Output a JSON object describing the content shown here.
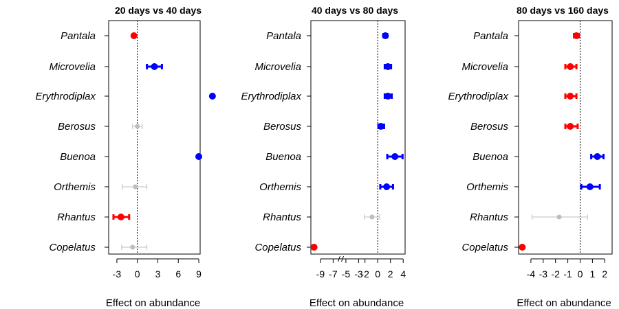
{
  "chart_data": [
    {
      "type": "scatter",
      "title": "20 days vs 40 days",
      "xlabel": "Effect on abundance",
      "xlim": [
        -4.2,
        9.2
      ],
      "xticks": [
        -3,
        0,
        3,
        6,
        9
      ],
      "xtick_labels": [
        "-3",
        "0",
        "3",
        "6",
        "9"
      ],
      "reference_line": 0,
      "axis_break": false,
      "grid": false,
      "categories": [
        "Pantala",
        "Microvelia",
        "Erythrodiplax",
        "Berosus",
        "Buenoa",
        "Orthemis",
        "Rhantus",
        "Copelatus"
      ],
      "points": [
        {
          "x": -0.5,
          "lo": null,
          "hi": null,
          "color": "red"
        },
        {
          "x": 2.5,
          "lo": 1.4,
          "hi": 3.6,
          "color": "blue"
        },
        {
          "x": 11.0,
          "lo": null,
          "hi": null,
          "color": "blue"
        },
        {
          "x": 0.0,
          "lo": -0.7,
          "hi": 0.7,
          "color": "gray"
        },
        {
          "x": 9.0,
          "lo": null,
          "hi": null,
          "color": "blue"
        },
        {
          "x": -0.3,
          "lo": -2.2,
          "hi": 1.4,
          "color": "gray"
        },
        {
          "x": -2.4,
          "lo": -3.5,
          "hi": -1.2,
          "color": "red"
        },
        {
          "x": -0.7,
          "lo": -2.3,
          "hi": 1.4,
          "color": "gray"
        }
      ]
    },
    {
      "type": "scatter",
      "title": "40 days vs 80 days",
      "xlabel": "Effect on abundance",
      "xlim": [
        -10.5,
        4.3
      ],
      "xticks": [
        -9,
        -7,
        -5,
        -3,
        -2,
        0,
        2,
        4
      ],
      "xtick_labels": [
        "-9",
        "-7",
        "-5",
        "-3",
        "-2",
        "0",
        "2",
        "4"
      ],
      "reference_line": 0,
      "axis_break": true,
      "grid": false,
      "categories": [
        "Pantala",
        "Microvelia",
        "Erythrodiplax",
        "Berosus",
        "Buenoa",
        "Orthemis",
        "Rhantus",
        "Copelatus"
      ],
      "points": [
        {
          "x": 1.2,
          "lo": 0.9,
          "hi": 1.5,
          "color": "blue"
        },
        {
          "x": 1.6,
          "lo": 1.1,
          "hi": 2.1,
          "color": "blue"
        },
        {
          "x": 1.6,
          "lo": 1.1,
          "hi": 2.2,
          "color": "blue"
        },
        {
          "x": 0.5,
          "lo": 0.1,
          "hi": 1.0,
          "color": "blue"
        },
        {
          "x": 2.7,
          "lo": 1.5,
          "hi": 3.9,
          "color": "blue"
        },
        {
          "x": 1.4,
          "lo": 0.4,
          "hi": 2.4,
          "color": "blue"
        },
        {
          "x": -0.9,
          "lo": -2.1,
          "hi": 0.3,
          "color": "gray"
        },
        {
          "x": -10.0,
          "lo": null,
          "hi": null,
          "color": "red"
        }
      ]
    },
    {
      "type": "scatter",
      "title": "80 days vs 160 days",
      "xlabel": "Effect on abundance",
      "xlim": [
        -5.0,
        2.6
      ],
      "xticks": [
        -4,
        -3,
        -2,
        -1,
        0,
        1,
        2
      ],
      "xtick_labels": [
        "-4",
        "-3",
        "-2",
        "-1",
        "0",
        "1",
        "2"
      ],
      "reference_line": 0,
      "axis_break": false,
      "grid": false,
      "categories": [
        "Pantala",
        "Microvelia",
        "Erythrodiplax",
        "Berosus",
        "Buenoa",
        "Orthemis",
        "Rhantus",
        "Copelatus"
      ],
      "points": [
        {
          "x": -0.3,
          "lo": -0.5,
          "hi": -0.1,
          "color": "red"
        },
        {
          "x": -0.8,
          "lo": -1.2,
          "hi": -0.3,
          "color": "red"
        },
        {
          "x": -0.8,
          "lo": -1.2,
          "hi": -0.3,
          "color": "red"
        },
        {
          "x": -0.8,
          "lo": -1.2,
          "hi": -0.2,
          "color": "red"
        },
        {
          "x": 1.4,
          "lo": 0.9,
          "hi": 1.9,
          "color": "blue"
        },
        {
          "x": 0.8,
          "lo": 0.1,
          "hi": 1.6,
          "color": "blue"
        },
        {
          "x": -1.7,
          "lo": -3.9,
          "hi": 0.6,
          "color": "gray"
        },
        {
          "x": -4.7,
          "lo": null,
          "hi": null,
          "color": "red"
        }
      ]
    }
  ],
  "colors": {
    "red": "#ff0000",
    "blue": "#0000ff",
    "gray": "#bebebe",
    "axis": "#000000"
  }
}
